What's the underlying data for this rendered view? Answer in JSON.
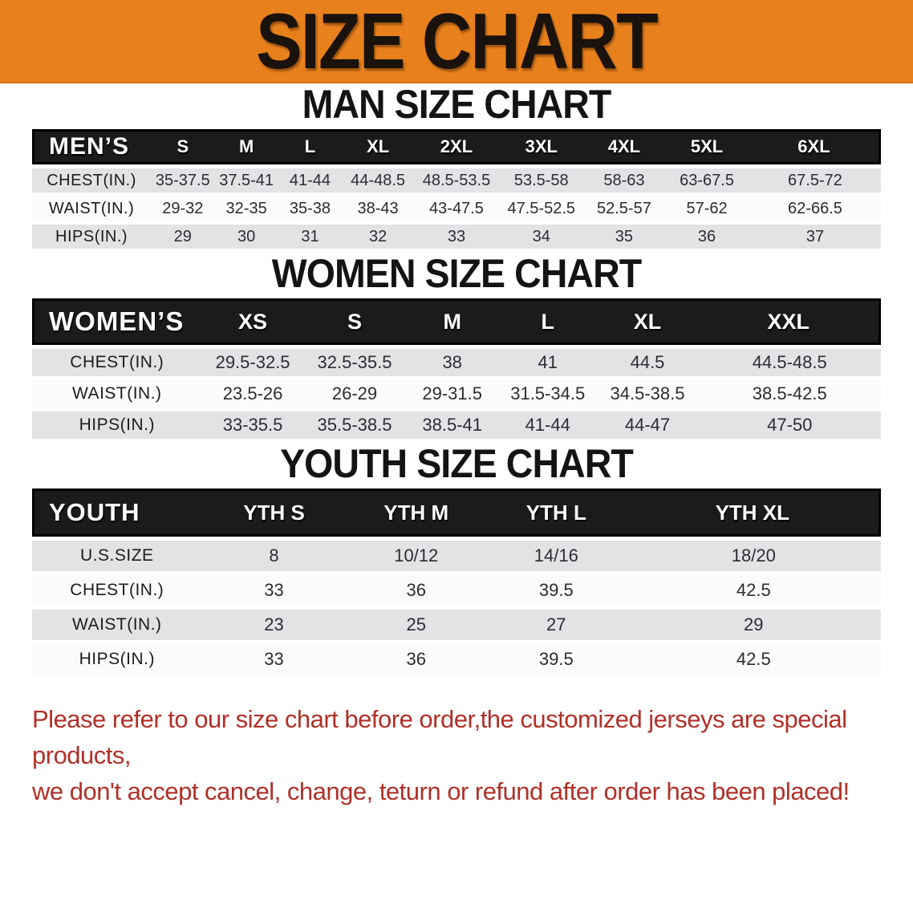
{
  "banner": {
    "title": "SIZE CHART"
  },
  "theme": {
    "banner_bg": "#E8811C",
    "head_bg": "#1B1B1B",
    "band_gray": "#E3E3E6",
    "band_white": "#FBFBFB",
    "note_red": "#B03028"
  },
  "tables": {
    "mens": {
      "heading": "MAN SIZE CHART",
      "label": "MEN’S",
      "columns": [
        "S",
        "M",
        "L",
        "XL",
        "2XL",
        "3XL",
        "4XL",
        "5XL",
        "6XL"
      ],
      "rows": [
        {
          "label": "CHEST(IN.)",
          "values": [
            "35-37.5",
            "37.5-41",
            "41-44",
            "44-48.5",
            "48.5-53.5",
            "53.5-58",
            "58-63",
            "63-67.5",
            "67.5-72"
          ]
        },
        {
          "label": "WAIST(IN.)",
          "values": [
            "29-32",
            "32-35",
            "35-38",
            "38-43",
            "43-47.5",
            "47.5-52.5",
            "52.5-57",
            "57-62",
            "62-66.5"
          ]
        },
        {
          "label": "HIPS(IN.)",
          "values": [
            "29",
            "30",
            "31",
            "32",
            "33",
            "34",
            "35",
            "36",
            "37"
          ]
        }
      ]
    },
    "womens": {
      "heading": "WOMEN SIZE CHART",
      "label": "WOMEN’S",
      "columns": [
        "XS",
        "S",
        "M",
        "L",
        "XL",
        "XXL"
      ],
      "rows": [
        {
          "label": "CHEST(IN.)",
          "values": [
            "29.5-32.5",
            "32.5-35.5",
            "38",
            "41",
            "44.5",
            "44.5-48.5"
          ]
        },
        {
          "label": "WAIST(IN.)",
          "values": [
            "23.5-26",
            "26-29",
            "29-31.5",
            "31.5-34.5",
            "34.5-38.5",
            "38.5-42.5"
          ]
        },
        {
          "label": "HIPS(IN.)",
          "values": [
            "33-35.5",
            "35.5-38.5",
            "38.5-41",
            "41-44",
            "44-47",
            "47-50"
          ]
        }
      ]
    },
    "youth": {
      "heading": "YOUTH SIZE CHART",
      "label": "YOUTH",
      "columns": [
        "YTH S",
        "YTH M",
        "YTH L",
        "YTH XL"
      ],
      "rows": [
        {
          "label": "U.S.SIZE",
          "values": [
            "8",
            "10/12",
            "14/16",
            "18/20"
          ]
        },
        {
          "label": "CHEST(IN.)",
          "values": [
            "33",
            "36",
            "39.5",
            "42.5"
          ]
        },
        {
          "label": "WAIST(IN.)",
          "values": [
            "23",
            "25",
            "27",
            "29"
          ]
        },
        {
          "label": "HIPS(IN.)",
          "values": [
            "33",
            "36",
            "39.5",
            "42.5"
          ]
        }
      ]
    }
  },
  "footer": {
    "line1": "Please refer to our size chart before order,the customized jerseys are special products,",
    "line2": "we don't accept cancel, change, teturn or refund after order has been placed!"
  }
}
